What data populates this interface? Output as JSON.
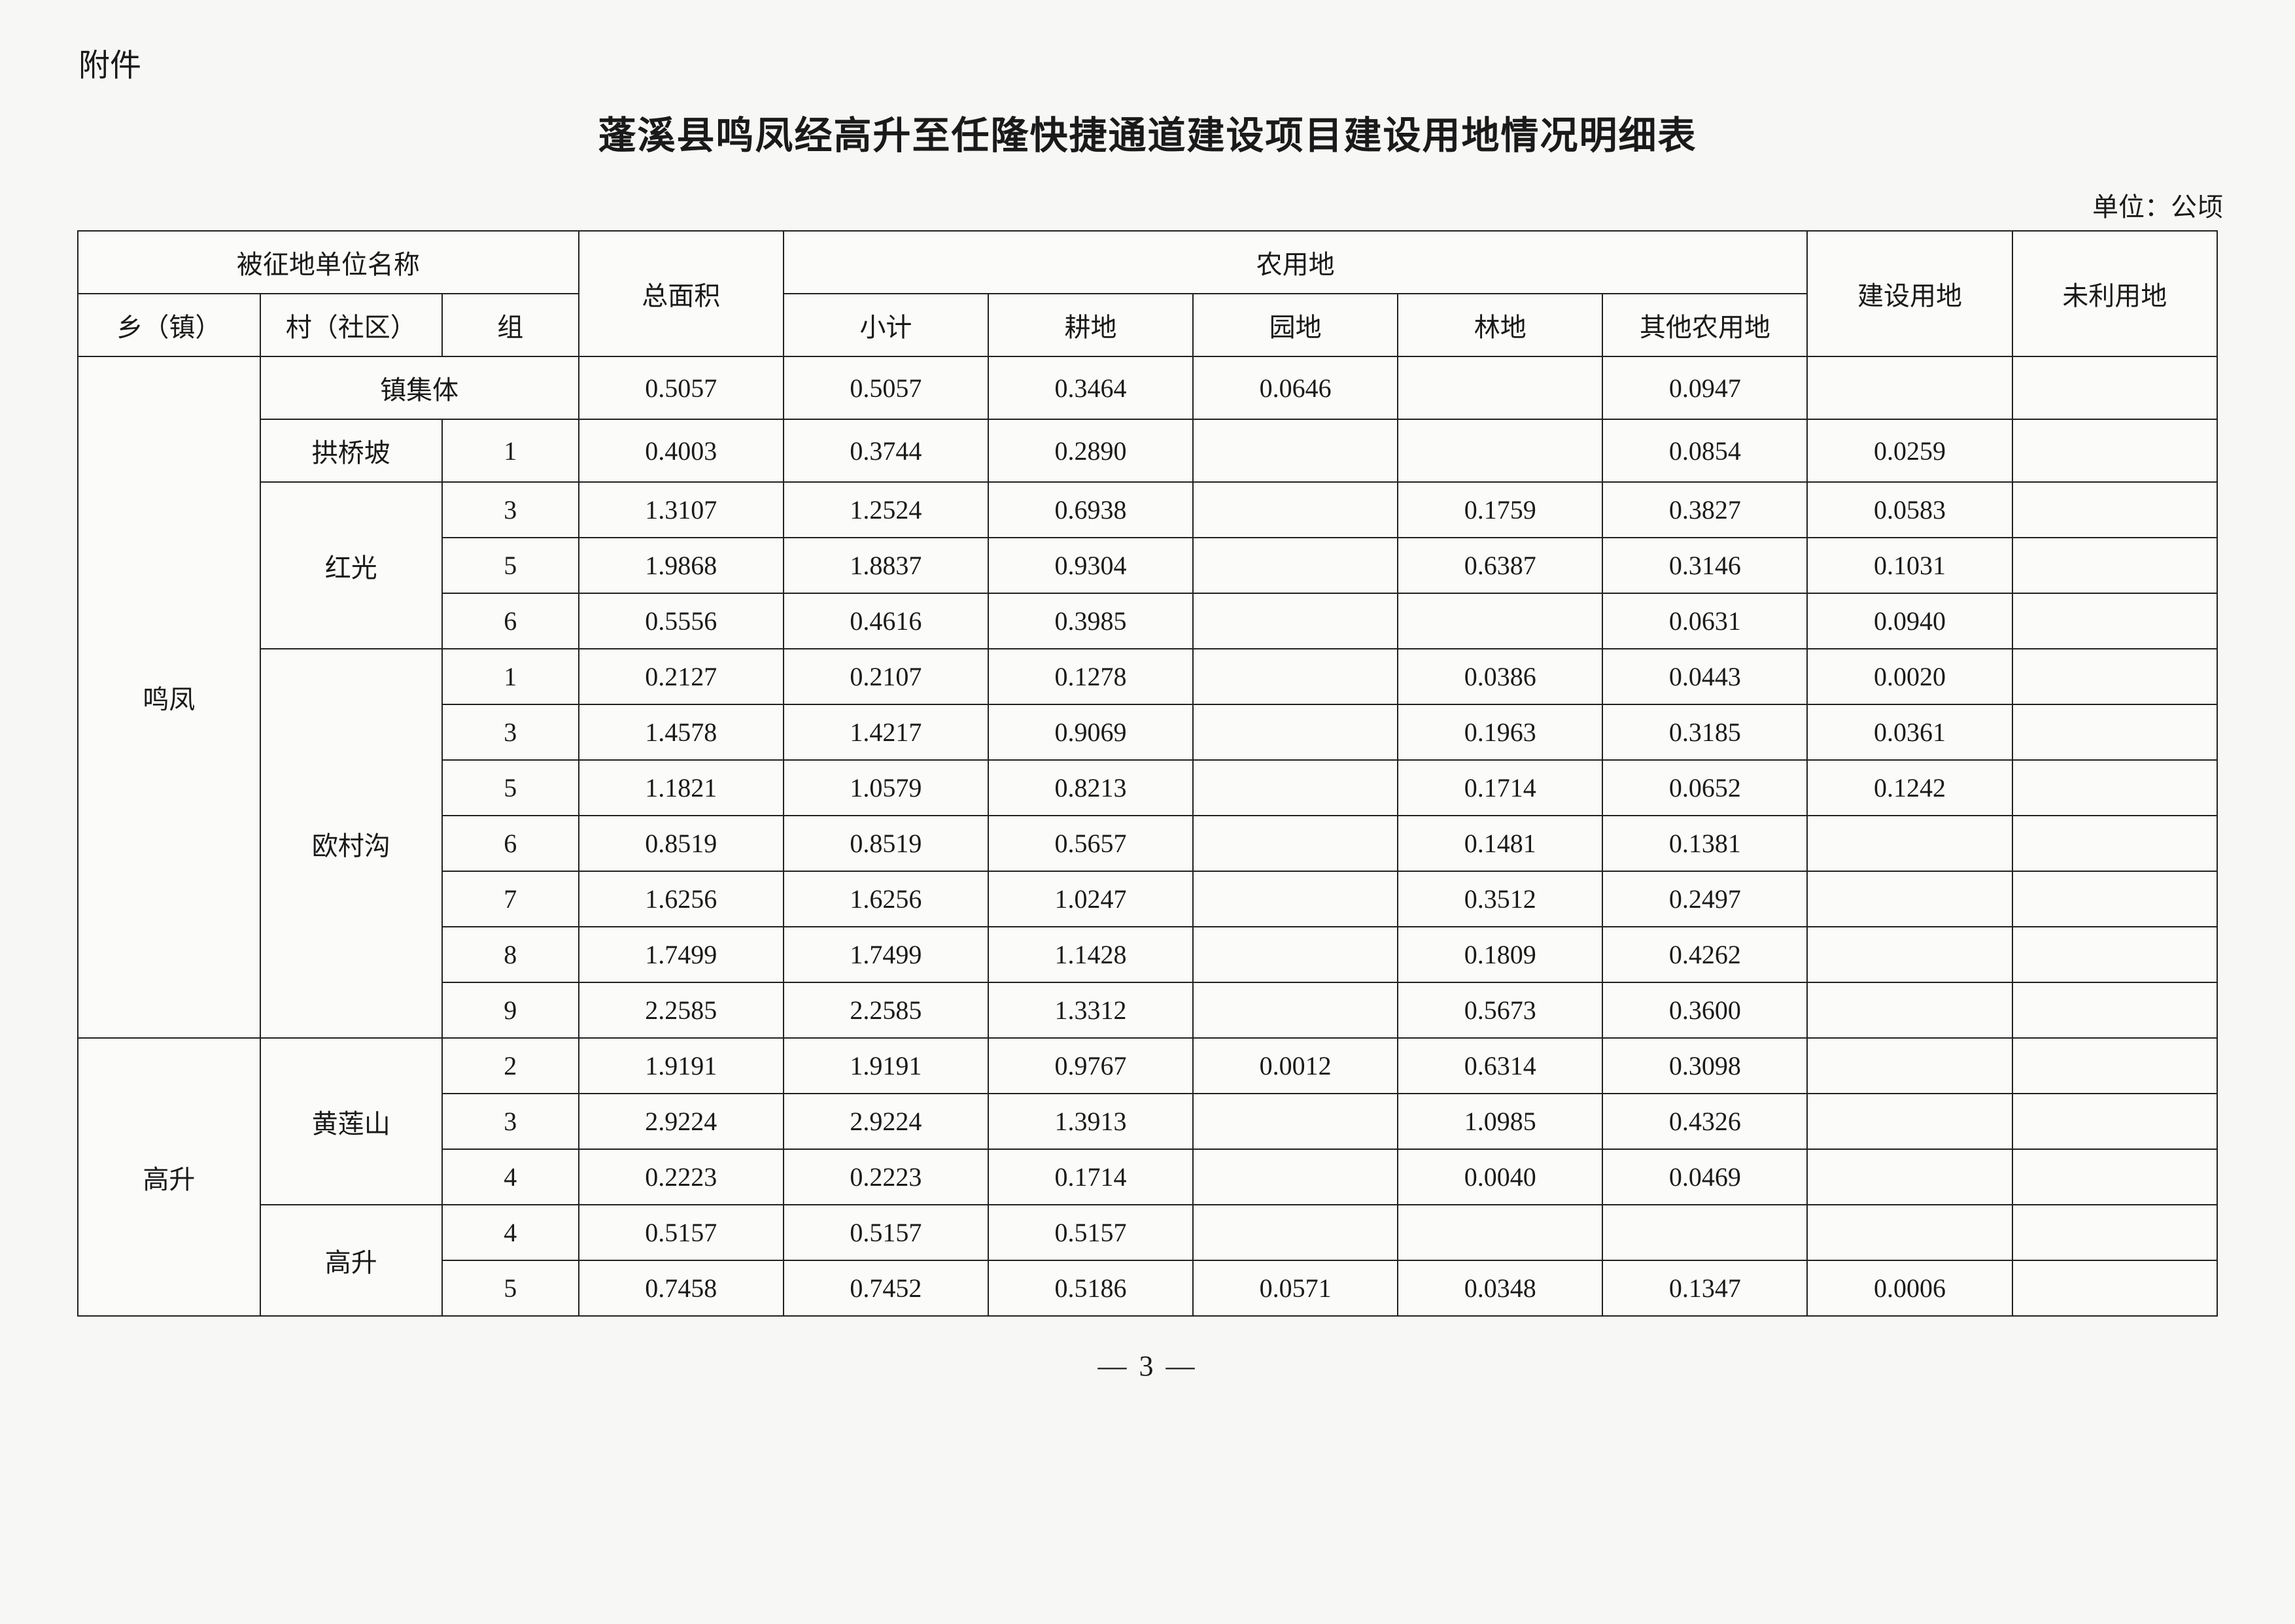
{
  "labels": {
    "attachment": "附件",
    "title": "蓬溪县鸣凤经高升至任隆快捷通道建设项目建设用地情况明细表",
    "unit": "单位：公顷",
    "page": "— 3 —"
  },
  "header": {
    "expropriated_unit": "被征地单位名称",
    "township": "乡（镇）",
    "village": "村（社区）",
    "group": "组",
    "total_area": "总面积",
    "agri_land": "农用地",
    "subtotal": "小计",
    "cultivated": "耕地",
    "garden": "园地",
    "forest": "林地",
    "other_agri": "其他农用地",
    "construction": "建设用地",
    "unused": "未利用地"
  },
  "towns": {
    "mingfeng": "鸣凤",
    "gaosheng": "高升"
  },
  "villages": {
    "town_collective": "镇集体",
    "gongqiaopo": "拱桥坡",
    "hongguang": "红光",
    "oucungou": "欧村沟",
    "huanglianshan": "黄莲山",
    "gaosheng": "高升"
  },
  "rows": [
    {
      "grp": "",
      "total": "0.5057",
      "sub": "0.5057",
      "geng": "0.3464",
      "yuan": "0.0646",
      "lin": "",
      "other": "0.0947",
      "build": "",
      "unused": ""
    },
    {
      "grp": "1",
      "total": "0.4003",
      "sub": "0.3744",
      "geng": "0.2890",
      "yuan": "",
      "lin": "",
      "other": "0.0854",
      "build": "0.0259",
      "unused": ""
    },
    {
      "grp": "3",
      "total": "1.3107",
      "sub": "1.2524",
      "geng": "0.6938",
      "yuan": "",
      "lin": "0.1759",
      "other": "0.3827",
      "build": "0.0583",
      "unused": ""
    },
    {
      "grp": "5",
      "total": "1.9868",
      "sub": "1.8837",
      "geng": "0.9304",
      "yuan": "",
      "lin": "0.6387",
      "other": "0.3146",
      "build": "0.1031",
      "unused": ""
    },
    {
      "grp": "6",
      "total": "0.5556",
      "sub": "0.4616",
      "geng": "0.3985",
      "yuan": "",
      "lin": "",
      "other": "0.0631",
      "build": "0.0940",
      "unused": ""
    },
    {
      "grp": "1",
      "total": "0.2127",
      "sub": "0.2107",
      "geng": "0.1278",
      "yuan": "",
      "lin": "0.0386",
      "other": "0.0443",
      "build": "0.0020",
      "unused": ""
    },
    {
      "grp": "3",
      "total": "1.4578",
      "sub": "1.4217",
      "geng": "0.9069",
      "yuan": "",
      "lin": "0.1963",
      "other": "0.3185",
      "build": "0.0361",
      "unused": ""
    },
    {
      "grp": "5",
      "total": "1.1821",
      "sub": "1.0579",
      "geng": "0.8213",
      "yuan": "",
      "lin": "0.1714",
      "other": "0.0652",
      "build": "0.1242",
      "unused": ""
    },
    {
      "grp": "6",
      "total": "0.8519",
      "sub": "0.8519",
      "geng": "0.5657",
      "yuan": "",
      "lin": "0.1481",
      "other": "0.1381",
      "build": "",
      "unused": ""
    },
    {
      "grp": "7",
      "total": "1.6256",
      "sub": "1.6256",
      "geng": "1.0247",
      "yuan": "",
      "lin": "0.3512",
      "other": "0.2497",
      "build": "",
      "unused": ""
    },
    {
      "grp": "8",
      "total": "1.7499",
      "sub": "1.7499",
      "geng": "1.1428",
      "yuan": "",
      "lin": "0.1809",
      "other": "0.4262",
      "build": "",
      "unused": ""
    },
    {
      "grp": "9",
      "total": "2.2585",
      "sub": "2.2585",
      "geng": "1.3312",
      "yuan": "",
      "lin": "0.5673",
      "other": "0.3600",
      "build": "",
      "unused": ""
    },
    {
      "grp": "2",
      "total": "1.9191",
      "sub": "1.9191",
      "geng": "0.9767",
      "yuan": "0.0012",
      "lin": "0.6314",
      "other": "0.3098",
      "build": "",
      "unused": ""
    },
    {
      "grp": "3",
      "total": "2.9224",
      "sub": "2.9224",
      "geng": "1.3913",
      "yuan": "",
      "lin": "1.0985",
      "other": "0.4326",
      "build": "",
      "unused": ""
    },
    {
      "grp": "4",
      "total": "0.2223",
      "sub": "0.2223",
      "geng": "0.1714",
      "yuan": "",
      "lin": "0.0040",
      "other": "0.0469",
      "build": "",
      "unused": ""
    },
    {
      "grp": "4",
      "total": "0.5157",
      "sub": "0.5157",
      "geng": "0.5157",
      "yuan": "",
      "lin": "",
      "other": "",
      "build": "",
      "unused": ""
    },
    {
      "grp": "5",
      "total": "0.7458",
      "sub": "0.7452",
      "geng": "0.5186",
      "yuan": "0.0571",
      "lin": "0.0348",
      "other": "0.1347",
      "build": "0.0006",
      "unused": ""
    }
  ]
}
